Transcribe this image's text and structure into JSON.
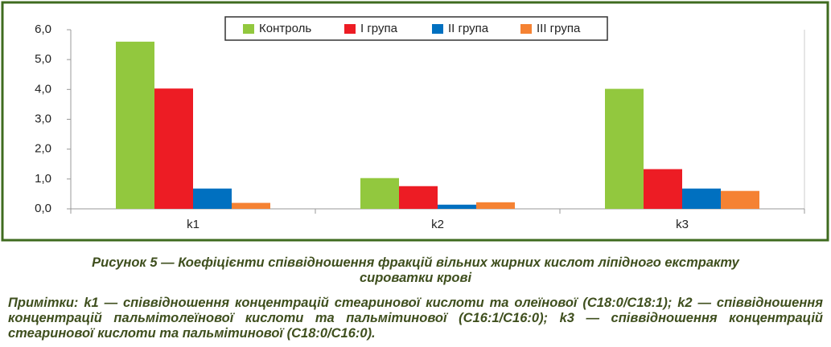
{
  "chart_data": {
    "type": "bar",
    "categories": [
      "k1",
      "k2",
      "k3"
    ],
    "series": [
      {
        "name": "Контроль",
        "color": "#92c83e",
        "values": [
          5.6,
          1.03,
          4.02
        ]
      },
      {
        "name": "I група",
        "color": "#ed1c24",
        "values": [
          4.03,
          0.76,
          1.33
        ]
      },
      {
        "name": "II група",
        "color": "#0070c0",
        "values": [
          0.68,
          0.14,
          0.68
        ]
      },
      {
        "name": "III група",
        "color": "#f58233",
        "values": [
          0.2,
          0.22,
          0.6
        ]
      }
    ],
    "ylim": [
      0,
      6
    ],
    "yticks": [
      {
        "value": 0,
        "label": "0,0"
      },
      {
        "value": 1,
        "label": "1,0"
      },
      {
        "value": 2,
        "label": "2,0"
      },
      {
        "value": 3,
        "label": "3,0"
      },
      {
        "value": 4,
        "label": "4,0"
      },
      {
        "value": 5,
        "label": "5,0"
      },
      {
        "value": 6,
        "label": "6,0"
      }
    ],
    "grid": false,
    "legend": "top"
  },
  "caption": "Рисунок 5 — Коефіцієнти співвідношення фракцій вільних жирних кислот ліпідного екстракту сироватки крові",
  "notes": "Примітки: k1 — співвідношення концентрацій стеаринової кислоти та олеїнової (С18:0/С18:1); k2 — співвідношення концентрацій пальмітолеїнової кислоти та пальмітинової (С16:1/С16:0); k3 — співвідношення концентрацій стеаринової кислоти та пальмітинової (С18:0/С16:0)."
}
